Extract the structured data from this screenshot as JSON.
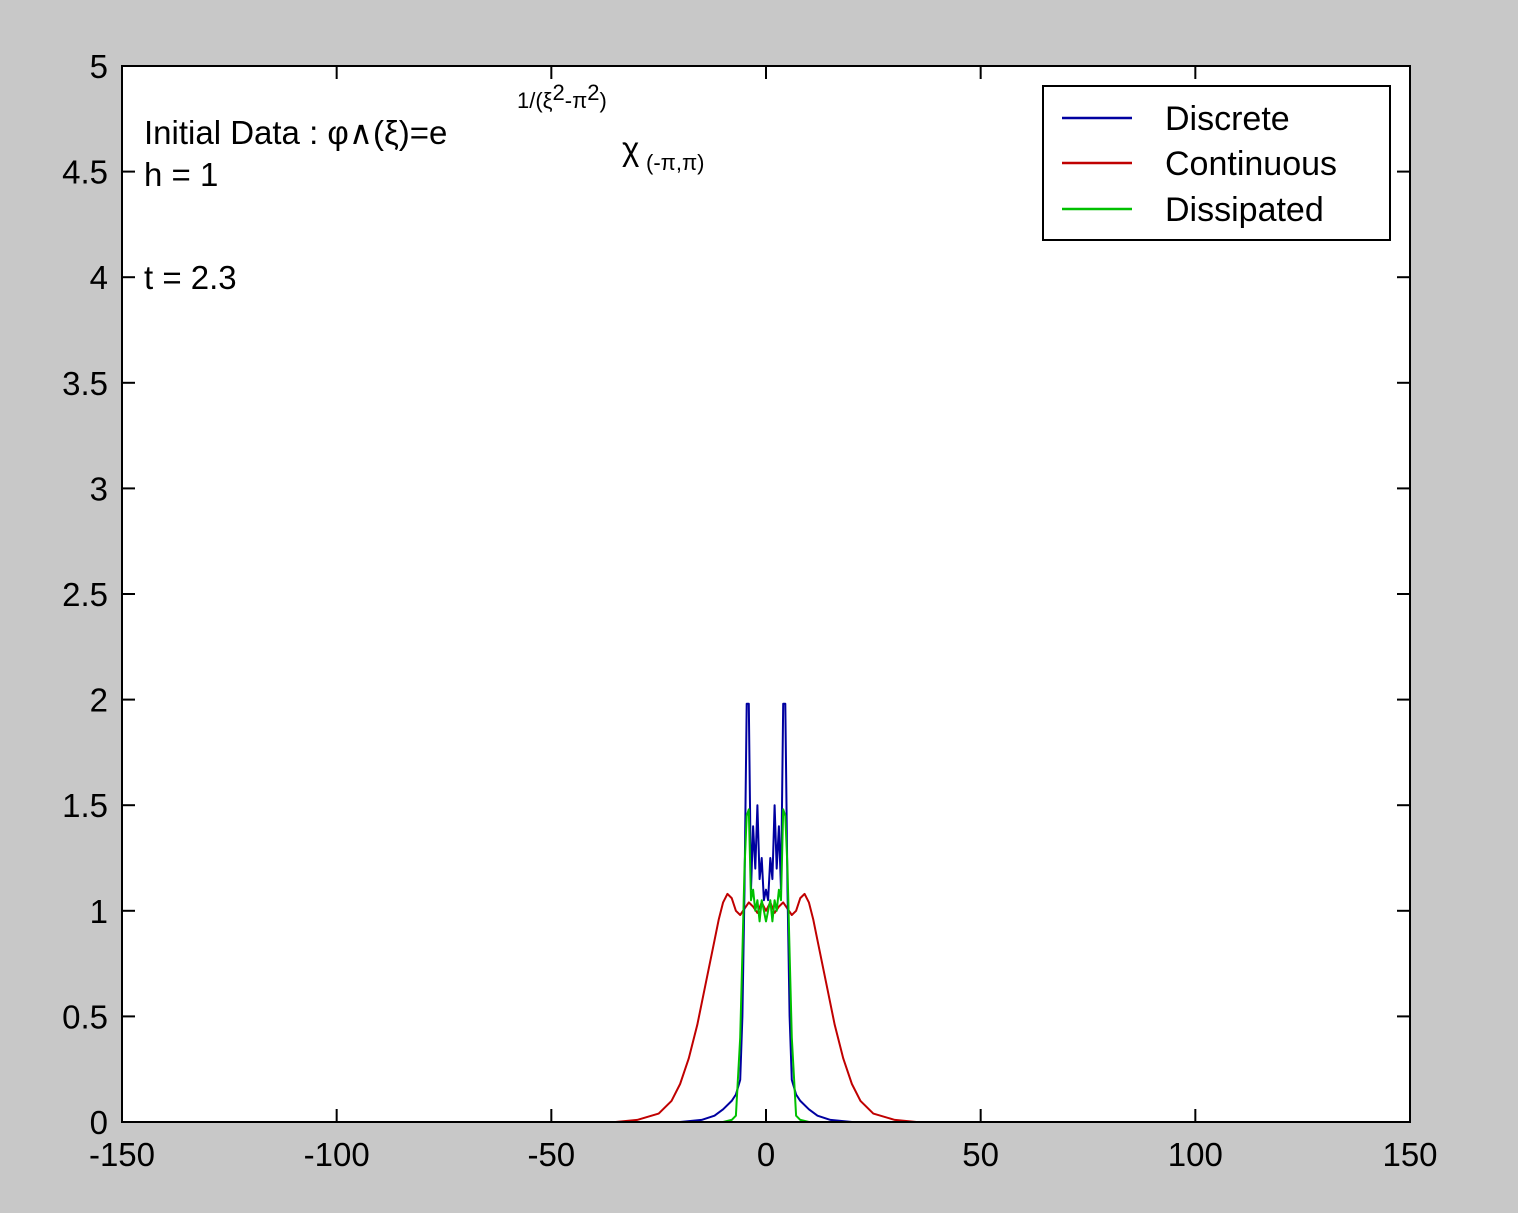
{
  "colors": {
    "figure_bg": "#c8c8c8",
    "axes_bg": "#ffffff",
    "discrete": "#0000a0",
    "continuous": "#c00000",
    "dissipated": "#00c000"
  },
  "annotations": {
    "line1_prefix": "Initial Data : ",
    "line1_phi": "φ∧(ξ)=e",
    "line1_exponent": "1/(ξ",
    "line1_exp_sq1": "2",
    "line1_exp_mid": "-π",
    "line1_exp_sq2": "2",
    "line1_exp_end": ")",
    "line1_chi": "χ",
    "line1_chi_sub": "(-π,π)",
    "line2": "h = 1",
    "line3": "t = 2.3"
  },
  "chart_data": {
    "type": "line",
    "title": "",
    "xlabel": "",
    "ylabel": "",
    "xlim": [
      -150,
      150
    ],
    "ylim": [
      0,
      5
    ],
    "x_ticks": [
      "-150",
      "-100",
      "-50",
      "0",
      "50",
      "100",
      "150"
    ],
    "y_ticks": [
      "0",
      "0.5",
      "1",
      "1.5",
      "2",
      "2.5",
      "3",
      "3.5",
      "4",
      "4.5",
      "5"
    ],
    "grid": false,
    "legend_position": "top-right",
    "series": [
      {
        "name": "Continuous",
        "color": "#c00000",
        "x": [
          -150,
          -35,
          -30,
          -25,
          -22,
          -20,
          -18,
          -16,
          -14,
          -12,
          -11,
          -10,
          -9,
          -8,
          -7,
          -6,
          -5,
          -4,
          -3,
          -2,
          -1,
          0,
          1,
          2,
          3,
          4,
          5,
          6,
          7,
          8,
          9,
          10,
          11,
          12,
          14,
          16,
          18,
          20,
          22,
          25,
          30,
          35,
          150
        ],
        "y": [
          0,
          0,
          0.01,
          0.04,
          0.1,
          0.18,
          0.3,
          0.46,
          0.66,
          0.86,
          0.96,
          1.04,
          1.08,
          1.06,
          1.0,
          0.98,
          1.01,
          1.04,
          1.02,
          0.99,
          1.04,
          1.0,
          1.04,
          0.99,
          1.02,
          1.04,
          1.01,
          0.98,
          1.0,
          1.06,
          1.08,
          1.04,
          0.96,
          0.86,
          0.66,
          0.46,
          0.3,
          0.18,
          0.1,
          0.04,
          0.01,
          0,
          0
        ]
      },
      {
        "name": "Discrete",
        "color": "#0000a0",
        "x": [
          -150,
          -20,
          -15,
          -12,
          -10,
          -8,
          -7,
          -6,
          -5.5,
          -5,
          -4.5,
          -4,
          -3.5,
          -3,
          -2.5,
          -2,
          -1.5,
          -1,
          -0.5,
          0,
          0.5,
          1,
          1.5,
          2,
          2.5,
          3,
          3.5,
          4,
          4.5,
          5,
          5.5,
          6,
          7,
          8,
          10,
          12,
          15,
          20,
          150
        ],
        "y": [
          0,
          0,
          0.01,
          0.03,
          0.06,
          0.1,
          0.13,
          0.2,
          0.5,
          1.1,
          1.98,
          1.98,
          1.1,
          1.4,
          1.2,
          1.5,
          1.15,
          1.25,
          1.05,
          1.1,
          1.05,
          1.25,
          1.15,
          1.5,
          1.2,
          1.4,
          1.1,
          1.98,
          1.98,
          1.1,
          0.5,
          0.2,
          0.13,
          0.1,
          0.06,
          0.03,
          0.01,
          0,
          0
        ]
      },
      {
        "name": "Dissipated",
        "color": "#00c000",
        "x": [
          -150,
          -10,
          -8,
          -7,
          -6,
          -5.5,
          -5,
          -4.5,
          -4,
          -3.5,
          -3,
          -2.5,
          -2,
          -1.5,
          -1,
          -0.5,
          0,
          0.5,
          1,
          1.5,
          2,
          2.5,
          3,
          3.5,
          4,
          4.5,
          5,
          5.5,
          6,
          7,
          8,
          10,
          150
        ],
        "y": [
          0,
          0,
          0.01,
          0.03,
          0.4,
          0.8,
          1.2,
          1.45,
          1.48,
          1.05,
          1.1,
          1.0,
          1.05,
          0.95,
          1.05,
          1.0,
          0.95,
          1.0,
          1.05,
          0.95,
          1.05,
          1.0,
          1.1,
          1.05,
          1.48,
          1.45,
          1.2,
          0.8,
          0.4,
          0.03,
          0.01,
          0,
          0
        ]
      }
    ]
  }
}
